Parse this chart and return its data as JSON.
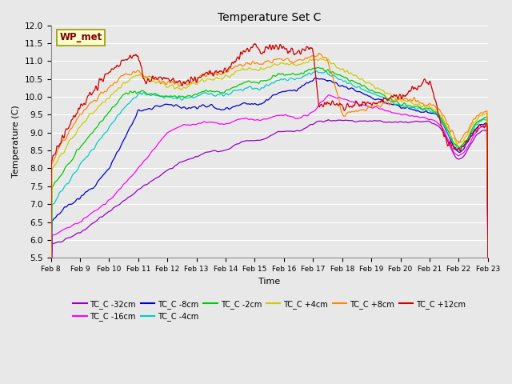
{
  "title": "Temperature Set C",
  "xlabel": "Time",
  "ylabel": "Temperature (C)",
  "ylim": [
    5.5,
    12.0
  ],
  "yticks": [
    5.5,
    6.0,
    6.5,
    7.0,
    7.5,
    8.0,
    8.5,
    9.0,
    9.5,
    10.0,
    10.5,
    11.0,
    11.5,
    12.0
  ],
  "xtick_labels": [
    "Feb 8",
    "Feb 9",
    "Feb 10",
    "Feb 11",
    "Feb 12",
    "Feb 13",
    "Feb 14",
    "Feb 15",
    "Feb 16",
    "Feb 17",
    "Feb 18",
    "Feb 19",
    "Feb 20",
    "Feb 21",
    "Feb 22",
    "Feb 23"
  ],
  "annotation_text": "WP_met",
  "annotation_color": "#800000",
  "annotation_bg": "#ffffcc",
  "annotation_edge": "#999900",
  "plot_bg": "#e8e8e8",
  "grid_color": "#ffffff",
  "series": [
    {
      "label": "TC_C -32cm",
      "color": "#9900cc"
    },
    {
      "label": "TC_C -16cm",
      "color": "#ff00ff"
    },
    {
      "label": "TC_C -8cm",
      "color": "#0000cc"
    },
    {
      "label": "TC_C -4cm",
      "color": "#00cccc"
    },
    {
      "label": "TC_C -2cm",
      "color": "#00cc00"
    },
    {
      "label": "TC_C +4cm",
      "color": "#cccc00"
    },
    {
      "label": "TC_C +8cm",
      "color": "#ff8800"
    },
    {
      "label": "TC_C +12cm",
      "color": "#cc0000"
    }
  ]
}
